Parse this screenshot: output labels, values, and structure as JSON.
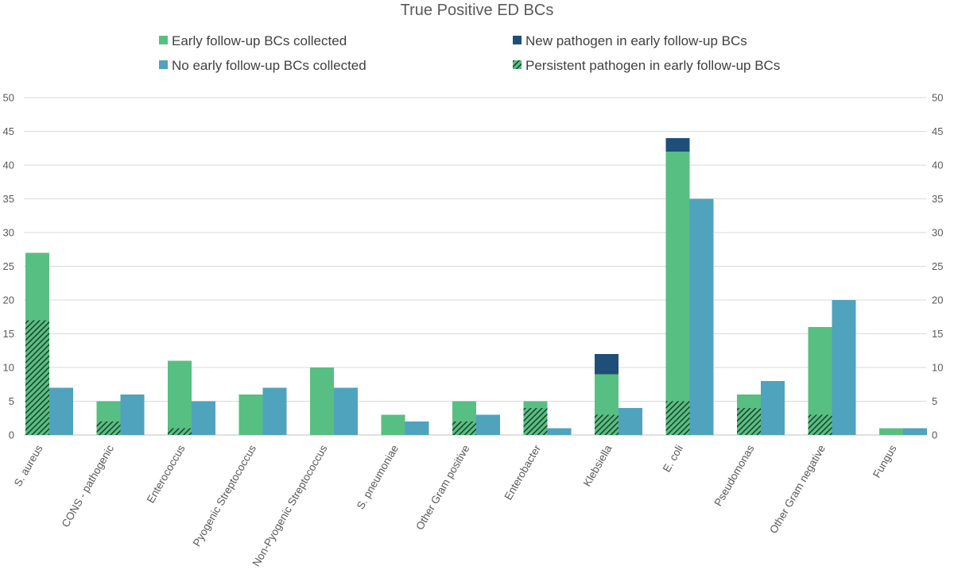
{
  "chart_data": {
    "type": "bar",
    "title": "True Positive ED BCs",
    "xlabel": "",
    "ylabel": "",
    "ylim": [
      0,
      50
    ],
    "yticks": [
      0,
      5,
      10,
      15,
      20,
      25,
      30,
      35,
      40,
      45,
      50
    ],
    "secondary_axis": true,
    "grid": true,
    "legend_position": "top",
    "categories": [
      "S. aureus",
      "CONS - pathogenic",
      "Enterococcus",
      "Pyogenic Streptococcus",
      "Non-Pyogenic Streptococcus",
      "S. pneumoniae",
      "Other Gram positive",
      "Enterobacter",
      "Klebsiella",
      "E. coli",
      "Pseudomonas",
      "Other Gram negative",
      "Fungus"
    ],
    "series": [
      {
        "name": "Early follow-up BCs collected",
        "color": "#57bf82",
        "values": [
          27,
          5,
          11,
          6,
          10,
          3,
          5,
          5,
          9,
          42,
          6,
          16,
          1
        ]
      },
      {
        "name": "New pathogen in early follow-up BCs",
        "color": "#1f4e79",
        "stacked_on": "Early follow-up BCs collected",
        "values": [
          0,
          0,
          0,
          0,
          0,
          0,
          0,
          0,
          3,
          2,
          0,
          0,
          0
        ]
      },
      {
        "name": "No early follow-up BCs collected",
        "color": "#4fa3bd",
        "values": [
          7,
          6,
          5,
          7,
          7,
          2,
          3,
          1,
          4,
          35,
          8,
          20,
          1
        ]
      },
      {
        "name": "Persistent pathogen in early follow-up BCs",
        "color": "#2f6b45",
        "pattern": "hatched",
        "overlay_on": "Early follow-up BCs collected",
        "values": [
          17,
          2,
          1,
          0,
          0,
          0,
          2,
          4,
          3,
          5,
          4,
          3,
          0
        ]
      }
    ]
  }
}
